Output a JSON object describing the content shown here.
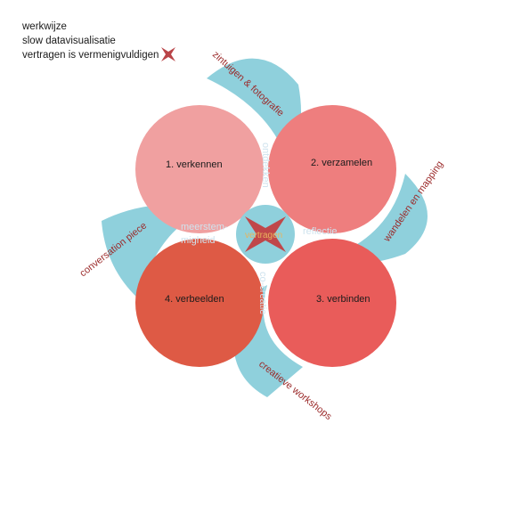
{
  "legend": {
    "line1": "werkwijze",
    "line2": "slow datavisualisatie",
    "line3": "vertragen is vermenigvuldigen",
    "icon": "x-cross-icon"
  },
  "phases": {
    "p1": "1.   verkennen",
    "p2": "2. verzamelen",
    "p3": "3. verbinden",
    "p4": "4. verbeelden"
  },
  "overlaps": {
    "top": "ontdekken",
    "right": "reflectie",
    "bottom": "co-creatie",
    "left_line1": "meerstem-",
    "left_line2": "migheid"
  },
  "core": "vertragen",
  "methods": {
    "top_right": "zintuigen & fotografie",
    "right": "wandelen en mapping",
    "bottom": "creatieve workshops",
    "left": "conversation piece"
  },
  "colors": {
    "circle1": "#f0a0a0",
    "circle2": "#ee7e7e",
    "circle3": "#e95c5a",
    "circle4": "#de5a45",
    "overlap": "#234e38",
    "petal": "#8fd0dc",
    "core": "#8fd0dc",
    "cross": "#c0474a",
    "method_text": "#9b2a2a"
  }
}
